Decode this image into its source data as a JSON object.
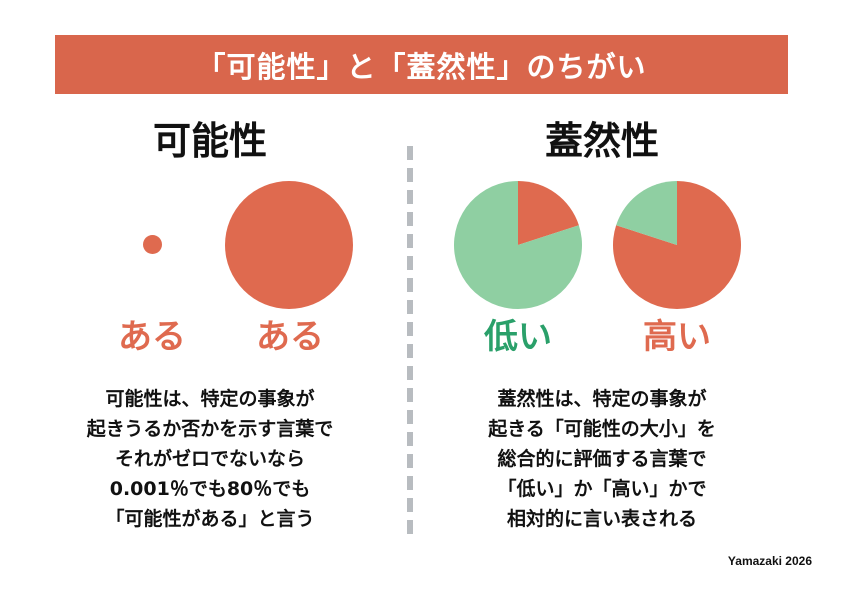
{
  "title": "「可能性」と「蓋然性」のちがい",
  "left": {
    "heading": "可能性",
    "labels": [
      "ある",
      "ある"
    ],
    "description": [
      "可能性は、特定の事象が",
      "起きうるか否かを示す言葉で",
      "それがゼロでないなら",
      "0.001％でも80％でも",
      "「可能性がある」と言う"
    ]
  },
  "right": {
    "heading": "蓋然性",
    "labels": [
      "低い",
      "高い"
    ],
    "description": [
      "蓋然性は、特定の事象が",
      "起きる「可能性の大小」を",
      "総合的に評価する言葉で",
      "「低い」か「高い」かで",
      "相対的に言い表される"
    ]
  },
  "chart_data": [
    {
      "type": "pie",
      "name": "低い",
      "slices": [
        {
          "value": 0.2,
          "color": "#df6a4f"
        },
        {
          "value": 0.8,
          "color": "#8fcfa2"
        }
      ]
    },
    {
      "type": "pie",
      "name": "高い",
      "slices": [
        {
          "value": 0.8,
          "color": "#df6a4f"
        },
        {
          "value": 0.2,
          "color": "#8fcfa2"
        }
      ]
    }
  ],
  "colors": {
    "banner": "#d9664c",
    "accent": "#df6a4f",
    "green_label": "#2aa06a",
    "green_slice": "#8fcfa2",
    "divider": "#b8bcc0"
  },
  "credit": "Yamazaki 2026"
}
